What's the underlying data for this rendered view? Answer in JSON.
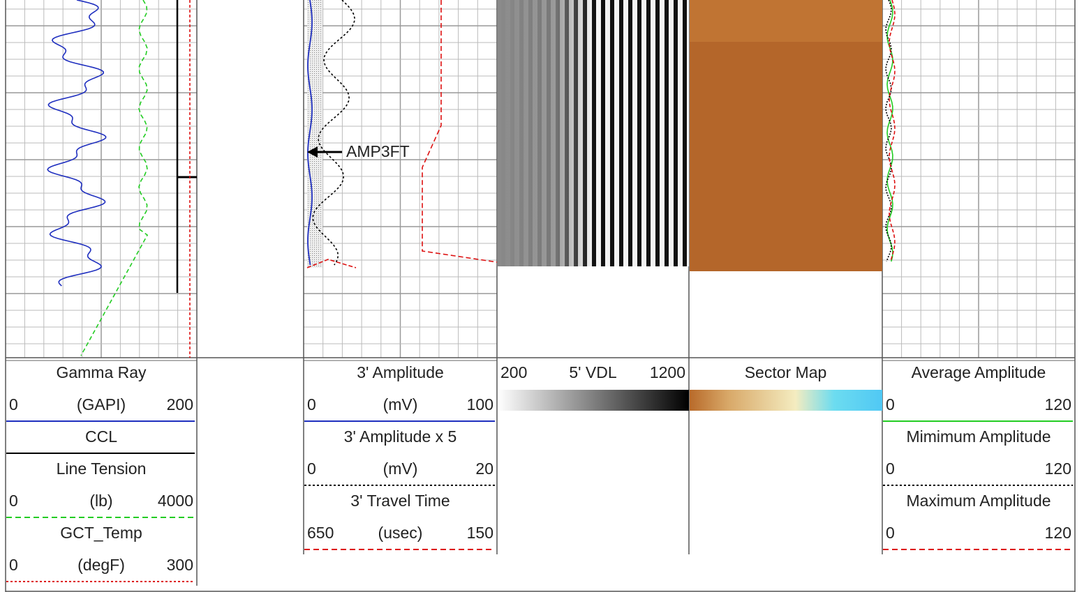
{
  "tracks": [
    {
      "curves": [
        {
          "name": "Gamma Ray",
          "left": 0,
          "unit": "(GAPI)",
          "right": 200,
          "color": "#1f2fbf",
          "dash": "solid"
        },
        {
          "name": "CCL",
          "color": "#000000",
          "dash": "solid"
        },
        {
          "name": "Line Tension",
          "left": 0,
          "unit": "(lb)",
          "right": 4000,
          "color": "#22cc22",
          "dash": "dashed"
        },
        {
          "name": "GCT_Temp",
          "left": 0,
          "unit": "(degF)",
          "right": 300,
          "color": "#dd1111",
          "dash": "dotted"
        }
      ]
    },
    {
      "curves": [
        {
          "name": "3' Amplitude",
          "left": 0,
          "unit": "(mV)",
          "right": 100,
          "color": "#1f2fbf",
          "dash": "solid"
        },
        {
          "name": "3' Amplitude x 5",
          "left": 0,
          "unit": "(mV)",
          "right": 20,
          "color": "#000000",
          "dash": "dotted"
        },
        {
          "name": "3' Travel Time",
          "left": 650,
          "unit": "(usec)",
          "right": 150,
          "color": "#dd1111",
          "dash": "dashed"
        }
      ]
    },
    {
      "curves": [
        {
          "name": "5' VDL",
          "left": 200,
          "right": 1200
        }
      ]
    },
    {
      "curves": [
        {
          "name": "Sector Map"
        }
      ]
    },
    {
      "curves": [
        {
          "name": "Average Amplitude",
          "left": 0,
          "right": 120,
          "color": "#22cc22",
          "dash": "solid"
        },
        {
          "name": "Mimimum Amplitude",
          "left": 0,
          "right": 120,
          "color": "#000000",
          "dash": "dotted"
        },
        {
          "name": "Maximum Amplitude",
          "left": 0,
          "right": 120,
          "color": "#dd1111",
          "dash": "dashed"
        }
      ]
    }
  ],
  "annotation": "AMP3FT"
}
